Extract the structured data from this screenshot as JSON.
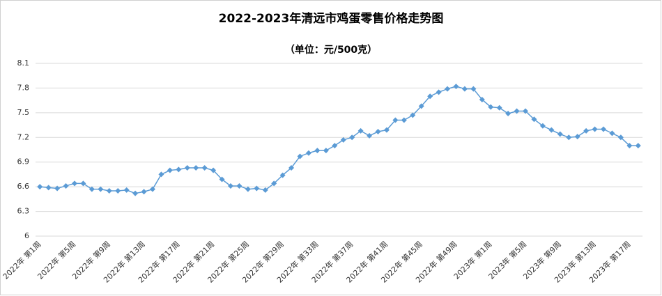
{
  "chart_data": {
    "type": "line",
    "title": "2022-2023年清远市鸡蛋零售价格走势图",
    "subtitle": "（单位：元/500克）",
    "categories": [
      "2022年 第1周",
      null,
      null,
      null,
      "2022年 第5周",
      null,
      null,
      null,
      "2022年 第9周",
      null,
      null,
      null,
      "2022年 第13周",
      null,
      null,
      null,
      "2022年 第17周",
      null,
      null,
      null,
      "2022年 第21周",
      null,
      null,
      null,
      "2022年 第25周",
      null,
      null,
      null,
      "2022年 第29周",
      null,
      null,
      null,
      "2022年 第33周",
      null,
      null,
      null,
      "2022年 第37周",
      null,
      null,
      null,
      "2022年 第41周",
      null,
      null,
      null,
      "2022年 第45周",
      null,
      null,
      null,
      "2022年 第49周",
      null,
      null,
      null,
      "2023年 第1周",
      null,
      null,
      null,
      "2023年 第5周",
      null,
      null,
      null,
      "2023年 第9周",
      null,
      null,
      null,
      "2023年 第13周",
      null,
      null,
      null,
      "2023年 第17周",
      null
    ],
    "series": [
      {
        "name": "鸡蛋",
        "color": "#5b9bd5",
        "values": [
          6.6,
          6.59,
          6.58,
          6.61,
          6.64,
          6.64,
          6.57,
          6.57,
          6.55,
          6.55,
          6.56,
          6.52,
          6.54,
          6.57,
          6.75,
          6.8,
          6.81,
          6.83,
          6.83,
          6.83,
          6.8,
          6.69,
          6.61,
          6.61,
          6.57,
          6.58,
          6.56,
          6.64,
          6.74,
          6.83,
          6.97,
          7.01,
          7.04,
          7.04,
          7.1,
          7.17,
          7.2,
          7.28,
          7.22,
          7.27,
          7.29,
          7.41,
          7.41,
          7.47,
          7.58,
          7.7,
          7.75,
          7.79,
          7.82,
          7.79,
          7.79,
          7.66,
          7.57,
          7.56,
          7.49,
          7.52,
          7.52,
          7.42,
          7.34,
          7.29,
          7.24,
          7.2,
          7.21,
          7.28,
          7.3,
          7.3,
          7.25,
          7.2,
          7.1,
          7.1
        ]
      }
    ],
    "ylim": [
      6,
      8.1
    ],
    "yticks": [
      6,
      6.3,
      6.6,
      6.9,
      7.2,
      7.5,
      7.8,
      8.1
    ],
    "grid": true
  }
}
